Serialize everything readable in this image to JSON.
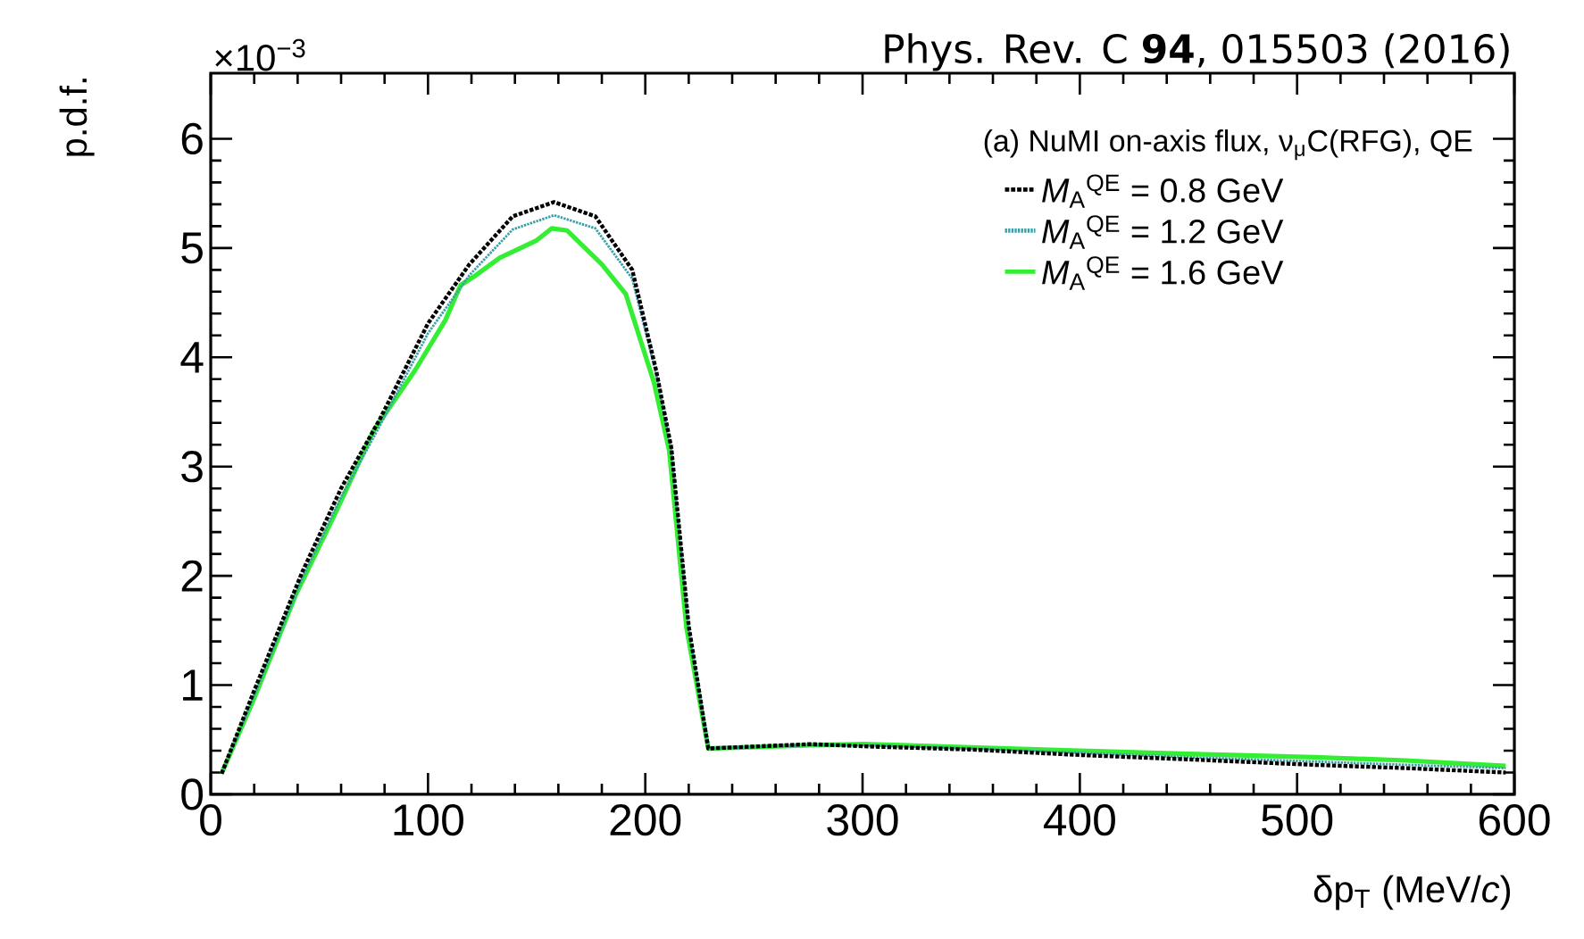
{
  "chart_data": {
    "type": "line",
    "xlabel": "δp$_{T}$ (MeV/*c*)",
    "ylabel": "p.d.f.",
    "annotations": [
      "Phys. Rev. C **94**, 015503 (2016)",
      "×10$^{−3}$",
      "(a) NuMI on-axis flux, ν$_{μ}$C(RFG), QE"
    ],
    "xlim": [
      0,
      600
    ],
    "ylim": [
      0,
      6.6
    ],
    "xticks": [
      0,
      100,
      200,
      300,
      400,
      500,
      600
    ],
    "yticks": [
      0,
      1,
      2,
      3,
      4,
      5,
      6
    ],
    "legend": "top right",
    "series": [
      {
        "name": "*M*$_{A}$$^{QE}$ = 0.8 GeV",
        "color": "#000000",
        "line_style": "dotted",
        "x": [
          5,
          20,
          42,
          60,
          78,
          100,
          119,
          139,
          158,
          177,
          194,
          205,
          212,
          220,
          229,
          276,
          300,
          350,
          400,
          450,
          508,
          550,
          596
        ],
        "values": [
          0.19,
          0.95,
          2.03,
          2.8,
          3.44,
          4.31,
          4.85,
          5.29,
          5.42,
          5.29,
          4.8,
          3.88,
          3.17,
          1.54,
          0.42,
          0.46,
          0.44,
          0.41,
          0.36,
          0.32,
          0.27,
          0.24,
          0.2
        ]
      },
      {
        "name": "*M*$_{A}$$^{QE}$ = 1.2 GeV",
        "color": "#3aa0a8",
        "line_style": "dotted",
        "x": [
          5,
          20,
          42,
          60,
          78,
          100,
          119,
          139,
          158,
          177,
          194,
          205,
          212,
          220,
          229,
          276,
          300,
          350,
          400,
          450,
          508,
          550,
          596
        ],
        "values": [
          0.19,
          0.9,
          1.97,
          2.72,
          3.38,
          4.22,
          4.75,
          5.17,
          5.3,
          5.18,
          4.72,
          3.85,
          3.15,
          1.52,
          0.42,
          0.45,
          0.45,
          0.42,
          0.38,
          0.34,
          0.3,
          0.27,
          0.24
        ]
      },
      {
        "name": "*M*$_{A}$$^{QE}$ = 1.6 GeV",
        "color": "#33ee33",
        "line_style": "solid",
        "x": [
          5,
          20,
          39,
          58,
          75,
          94,
          108,
          115,
          122,
          133,
          150,
          157,
          164,
          180,
          191,
          204,
          211,
          219,
          229,
          276,
          300,
          350,
          400,
          450,
          508,
          550,
          596
        ],
        "values": [
          0.19,
          0.88,
          1.82,
          2.6,
          3.33,
          3.88,
          4.34,
          4.66,
          4.75,
          4.91,
          5.07,
          5.18,
          5.16,
          4.85,
          4.58,
          3.77,
          3.15,
          1.52,
          0.42,
          0.45,
          0.46,
          0.43,
          0.4,
          0.37,
          0.34,
          0.31,
          0.26
        ]
      }
    ]
  }
}
